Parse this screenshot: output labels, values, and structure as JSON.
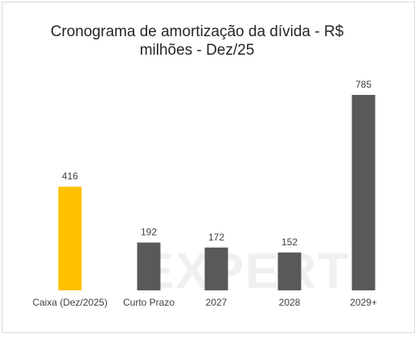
{
  "chart_data": {
    "type": "bar",
    "title_line1": "Cronograma de amortização da dívida - R$",
    "title_line2": "milhões - Dez/25",
    "categories": [
      "Caixa (Dez/2025)",
      "Curto Prazo",
      "2027",
      "2028",
      "2029+"
    ],
    "values": [
      416,
      192,
      172,
      152,
      785
    ],
    "colors": [
      "#ffc000",
      "#595959",
      "#595959",
      "#595959",
      "#595959"
    ],
    "ylim": [
      0,
      785
    ],
    "grid": false,
    "legend": "none",
    "watermark": "EXPERT"
  }
}
